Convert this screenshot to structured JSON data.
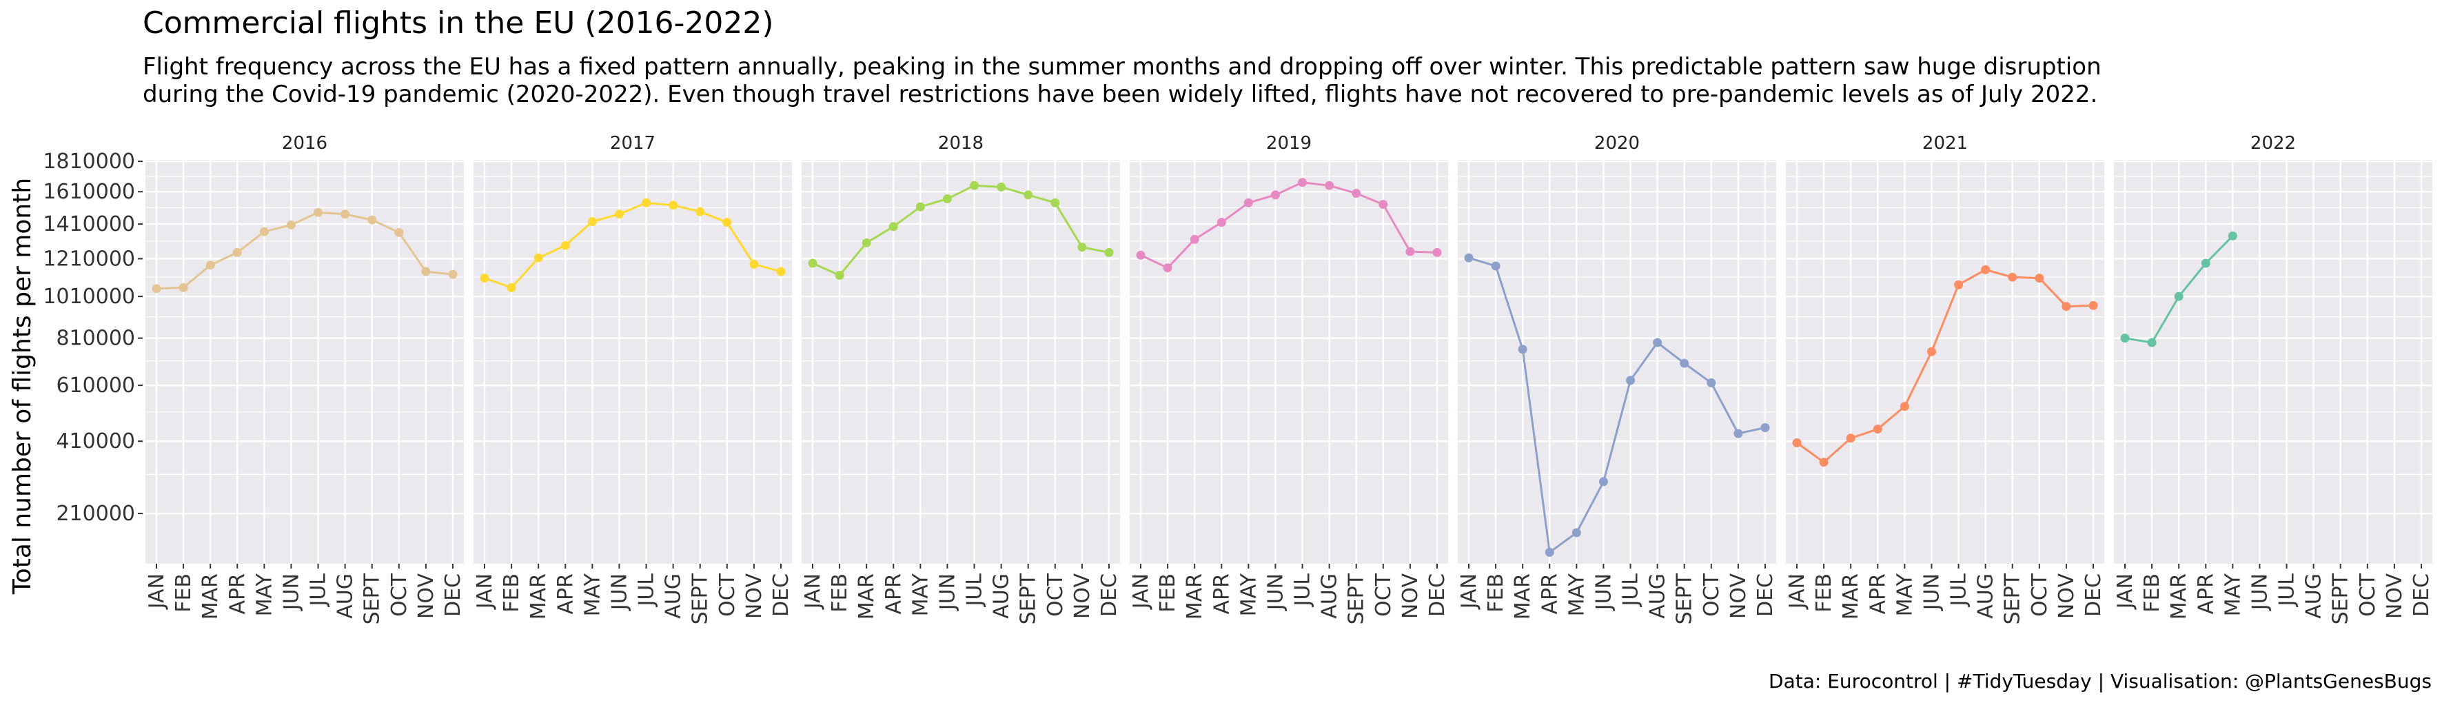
{
  "chart_data": {
    "type": "line",
    "title": "Commercial flights in the EU (2016-2022)",
    "subtitle_lines": [
      "Flight frequency across the EU has a fixed pattern annually, peaking in the summer months and dropping off over winter. This predictable pattern saw huge disruption",
      "during the Covid-19 pandemic (2020-2022). Even though travel restrictions have been widely lifted, flights have not recovered to pre-pandemic levels as of July 2022."
    ],
    "ylabel": "Total number of flights per month",
    "caption": "Data: Eurocontrol  |  #TidyTuesday  |  Visualisation: @PlantsGenesBugs",
    "y_scale": "sqrt",
    "ylim": [
      110000,
      1820000
    ],
    "y_ticks": [
      210000,
      410000,
      610000,
      810000,
      1010000,
      1210000,
      1410000,
      1610000,
      1810000
    ],
    "x_categories": [
      "JAN",
      "FEB",
      "MAR",
      "APR",
      "MAY",
      "JUN",
      "JUL",
      "AUG",
      "SEPT",
      "OCT",
      "NOV",
      "DEC"
    ],
    "grid": true,
    "panel_background": "#EBE9ED",
    "series": [
      {
        "name": "2016",
        "color": "#E5C494",
        "values": [
          1050000,
          1055000,
          1175000,
          1245000,
          1365000,
          1405000,
          1480000,
          1470000,
          1435000,
          1360000,
          1140000,
          1125000
        ]
      },
      {
        "name": "2017",
        "color": "#FFD92F",
        "values": [
          1105000,
          1055000,
          1215000,
          1285000,
          1425000,
          1470000,
          1540000,
          1525000,
          1485000,
          1420000,
          1180000,
          1140000
        ]
      },
      {
        "name": "2018",
        "color": "#A6D854",
        "values": [
          1185000,
          1120000,
          1300000,
          1395000,
          1515000,
          1565000,
          1650000,
          1640000,
          1590000,
          1540000,
          1275000,
          1245000
        ]
      },
      {
        "name": "2019",
        "color": "#E78AC3",
        "values": [
          1230000,
          1160000,
          1320000,
          1420000,
          1540000,
          1590000,
          1670000,
          1650000,
          1600000,
          1530000,
          1250000,
          1245000
        ]
      },
      {
        "name": "2020",
        "color": "#8DA0CB",
        "values": [
          1215000,
          1170000,
          760000,
          130000,
          168000,
          290000,
          630000,
          790000,
          700000,
          620000,
          435000,
          455000
        ]
      },
      {
        "name": "2021",
        "color": "#FC8D62",
        "values": [
          405000,
          345000,
          420000,
          450000,
          530000,
          750000,
          1070000,
          1150000,
          1110000,
          1105000,
          960000,
          965000
        ]
      },
      {
        "name": "2022",
        "color": "#66C2A5",
        "values": [
          810000,
          790000,
          1010000,
          1185000,
          1340000,
          null,
          null,
          null,
          null,
          null,
          null,
          null
        ]
      }
    ]
  }
}
